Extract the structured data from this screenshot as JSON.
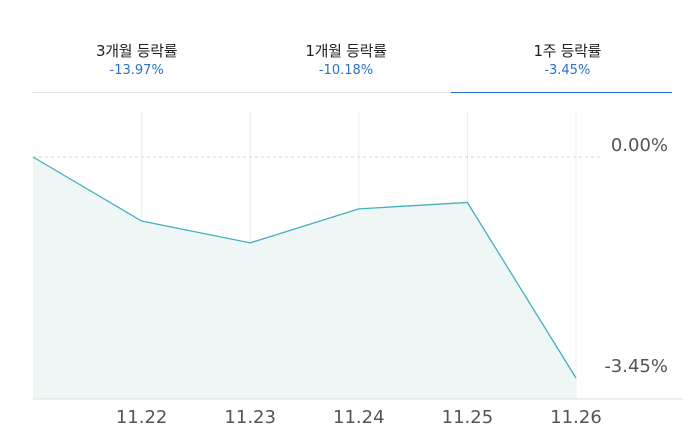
{
  "tabs": [
    {
      "label": "3개월 등락률",
      "value": "-13.97%",
      "active": false
    },
    {
      "label": "1개월 등락률",
      "value": "-10.18%",
      "active": false
    },
    {
      "label": "1주 등락률",
      "value": "-3.45%",
      "active": true
    }
  ],
  "colors": {
    "line": "#45b0bd",
    "area": "#eef7f5",
    "accent": "#2a72c8",
    "grid": "#ececec",
    "baseline_dashed": "#d4d4d4",
    "axis_text": "#555555"
  },
  "chart_data": {
    "type": "area",
    "x": [
      "11.21",
      "11.22",
      "11.23",
      "11.24",
      "11.25",
      "11.26"
    ],
    "x_tick_labels": [
      "11.22",
      "11.23",
      "11.24",
      "11.25",
      "11.26"
    ],
    "y": [
      0.0,
      -1.0,
      -1.34,
      -0.81,
      -0.71,
      -3.45
    ],
    "y_tick_labels": [
      "0.00%",
      "-3.45%"
    ],
    "ylim": [
      -3.45,
      0.0
    ],
    "grid": true
  }
}
